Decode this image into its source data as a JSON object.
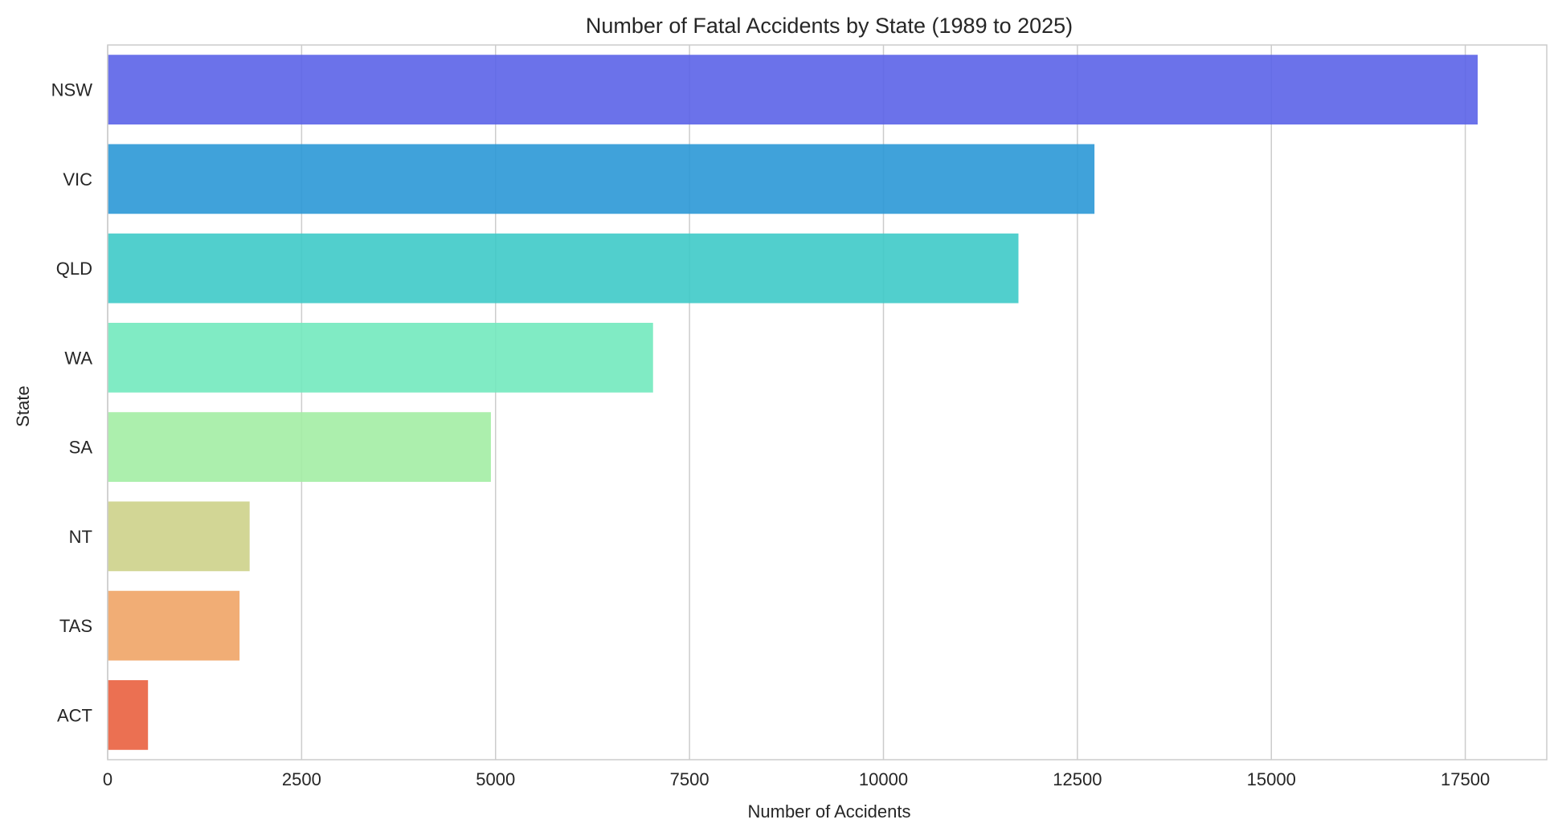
{
  "chart_data": {
    "type": "bar",
    "orientation": "horizontal",
    "title": "Number of Fatal Accidents by State (1989 to 2025)",
    "xlabel": "Number of Accidents",
    "ylabel": "State",
    "categories": [
      "NSW",
      "VIC",
      "QLD",
      "WA",
      "SA",
      "NT",
      "TAS",
      "ACT"
    ],
    "values": [
      17660,
      12720,
      11740,
      7030,
      4940,
      1830,
      1700,
      520
    ],
    "colors": [
      "#5b63e8",
      "#2b98d6",
      "#3ecac8",
      "#72e9be",
      "#a3eda4",
      "#cdd189",
      "#efa466",
      "#e9603f"
    ],
    "xlim": [
      0,
      18550
    ],
    "xticks": [
      0,
      2500,
      5000,
      7500,
      10000,
      12500,
      15000,
      17500
    ],
    "grid": "vertical",
    "legend": "none"
  }
}
